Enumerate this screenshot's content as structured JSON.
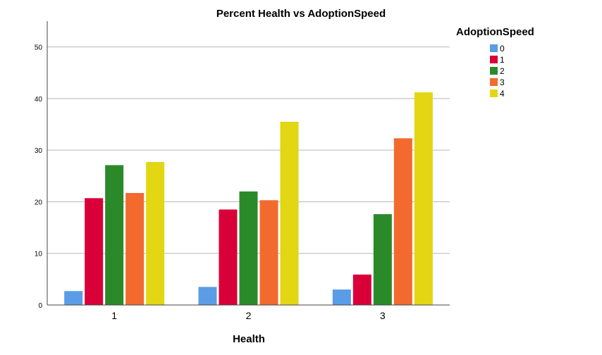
{
  "chart_data": {
    "type": "bar",
    "title": "Percent Health vs AdoptionSpeed",
    "xlabel": "Health",
    "ylabel": "",
    "categories": [
      "1",
      "2",
      "3"
    ],
    "ylim": [
      0,
      55
    ],
    "yticks": [
      0,
      10,
      20,
      30,
      40,
      50
    ],
    "grid": true,
    "legend": {
      "title": "AdoptionSpeed",
      "placement": "top-right"
    },
    "series": [
      {
        "name": "0",
        "color": "#5b9ce6",
        "values": [
          2.7,
          3.5,
          3.0
        ]
      },
      {
        "name": "1",
        "color": "#d9003a",
        "values": [
          20.7,
          18.5,
          5.9
        ]
      },
      {
        "name": "2",
        "color": "#2a8a2a",
        "values": [
          27.1,
          22.0,
          17.6
        ]
      },
      {
        "name": "3",
        "color": "#f26a2e",
        "values": [
          21.7,
          20.3,
          32.3
        ]
      },
      {
        "name": "4",
        "color": "#e3d612",
        "values": [
          27.7,
          35.5,
          41.2
        ]
      }
    ]
  }
}
